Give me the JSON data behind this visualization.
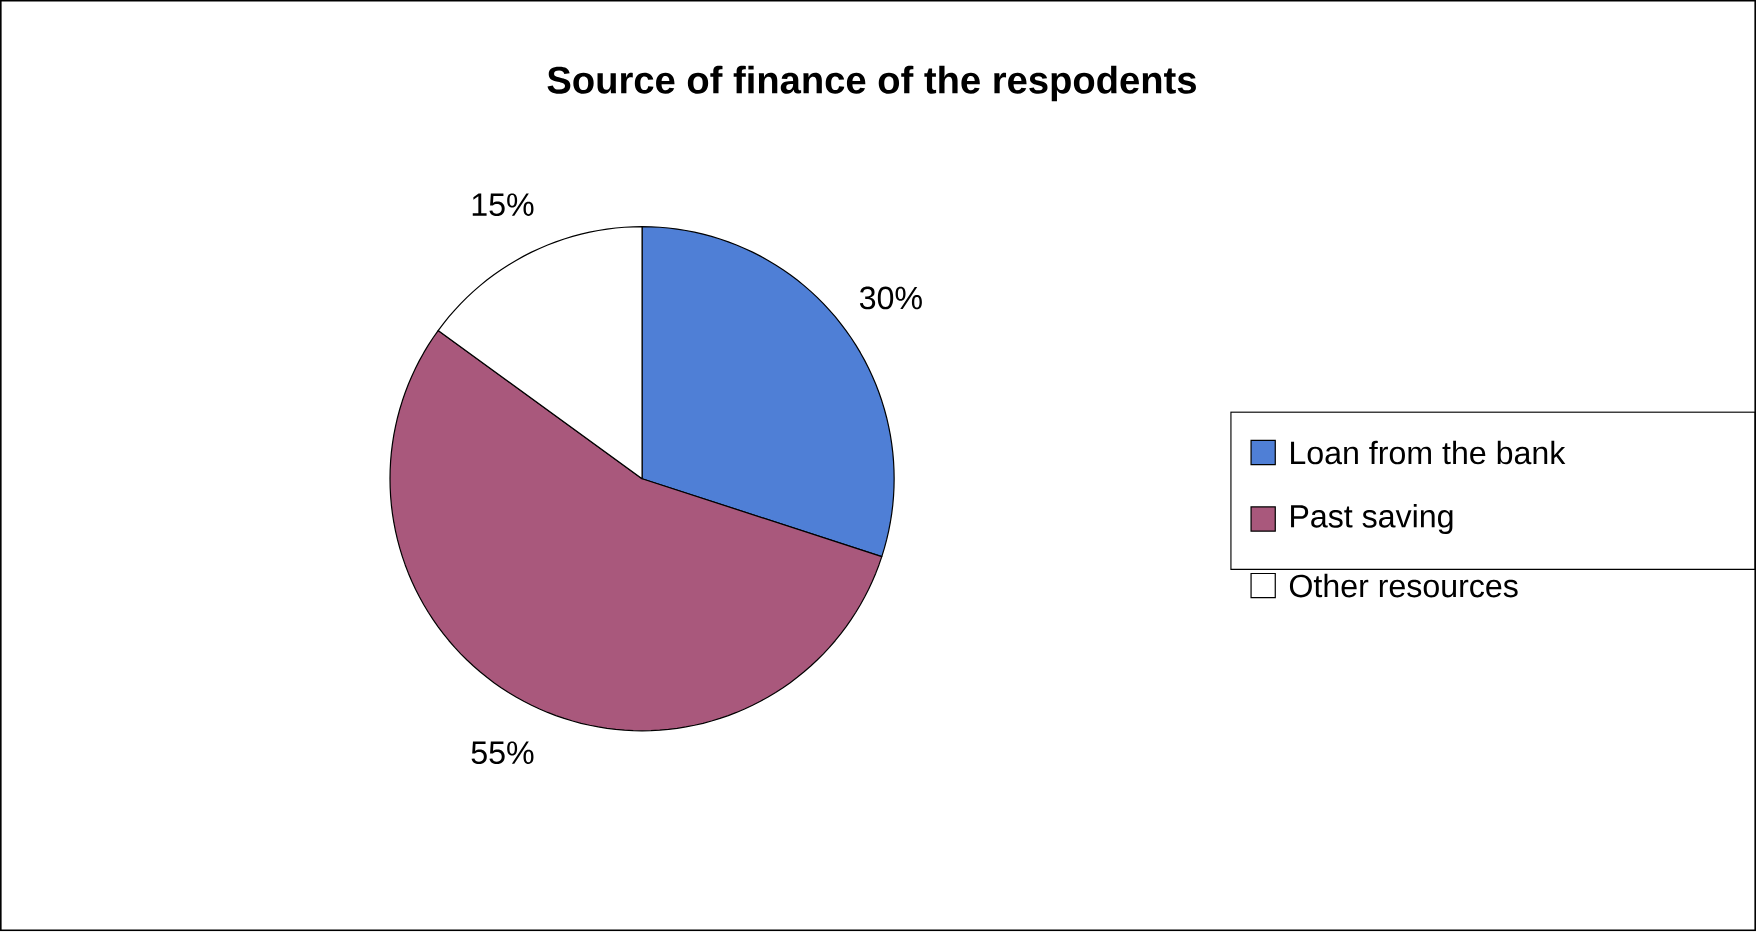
{
  "chart_data": {
    "type": "pie",
    "title": "Source of finance of the respodents",
    "categories": [
      "Loan from the bank",
      "Past saving",
      "Other resources"
    ],
    "values": [
      30,
      55,
      15
    ],
    "value_labels": [
      "30%",
      "55%",
      "15%"
    ],
    "colors": [
      "#4f7fd6",
      "#a9587c",
      "#ffffff"
    ],
    "legend": "right"
  }
}
